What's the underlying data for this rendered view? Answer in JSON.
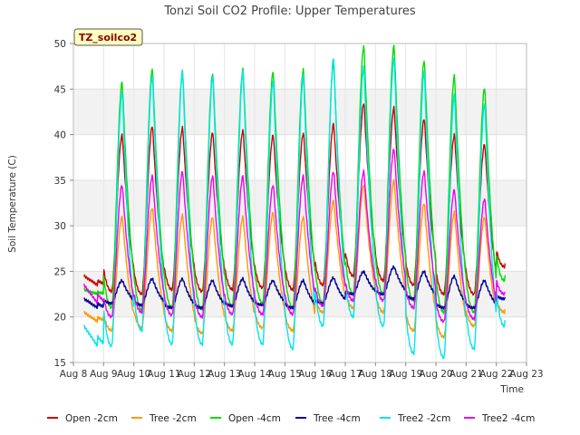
{
  "chart_data": {
    "type": "line",
    "title": "Tonzi Soil CO2 Profile: Upper Temperatures",
    "xlabel": "Time",
    "ylabel": "Soil Temperature (C)",
    "ylim": [
      15,
      50
    ],
    "xlim": [
      8,
      23
    ],
    "yticks": [
      15,
      20,
      25,
      30,
      35,
      40,
      45,
      50
    ],
    "xticks": [
      {
        "v": 8,
        "label": "Aug 8"
      },
      {
        "v": 9,
        "label": "Aug 9"
      },
      {
        "v": 10,
        "label": "Aug 10"
      },
      {
        "v": 11,
        "label": "Aug 11"
      },
      {
        "v": 12,
        "label": "Aug 12"
      },
      {
        "v": 13,
        "label": "Aug 13"
      },
      {
        "v": 14,
        "label": "Aug 14"
      },
      {
        "v": 15,
        "label": "Aug 15"
      },
      {
        "v": 16,
        "label": "Aug 16"
      },
      {
        "v": 17,
        "label": "Aug 17"
      },
      {
        "v": 18,
        "label": "Aug 18"
      },
      {
        "v": 19,
        "label": "Aug 19"
      },
      {
        "v": 20,
        "label": "Aug 20"
      },
      {
        "v": 21,
        "label": "Aug 21"
      },
      {
        "v": 22,
        "label": "Aug 22"
      },
      {
        "v": 23,
        "label": "Aug 23"
      }
    ],
    "grid": true,
    "legend_position": "bottom",
    "tag_label": "TZ_soilco2",
    "days": [
      8,
      9,
      10,
      11,
      12,
      13,
      14,
      15,
      16,
      17,
      18,
      19,
      20,
      21,
      22
    ],
    "series": [
      {
        "name": "Open -2cm",
        "color": "#cc0000",
        "max": [
          24.5,
          40.0,
          41.0,
          40.8,
          40.3,
          40.5,
          40.0,
          40.2,
          41.2,
          43.5,
          43.0,
          41.8,
          40.0,
          39.0,
          38.8
        ],
        "min": [
          23.5,
          22.8,
          22.5,
          23.0,
          22.8,
          23.0,
          23.2,
          23.0,
          23.5,
          24.5,
          24.0,
          23.5,
          22.5,
          22.5,
          25.5
        ]
      },
      {
        "name": "Tree -2cm",
        "color": "#ff9900",
        "max": [
          20.5,
          31.0,
          32.0,
          31.2,
          31.0,
          31.0,
          31.5,
          31.0,
          32.8,
          34.5,
          35.0,
          32.5,
          31.5,
          31.0,
          31.0
        ],
        "min": [
          19.5,
          18.5,
          18.8,
          18.5,
          18.2,
          18.5,
          18.8,
          18.5,
          20.5,
          21.0,
          20.5,
          18.5,
          17.8,
          19.0,
          20.5
        ]
      },
      {
        "name": "Open -4cm",
        "color": "#00dd00",
        "max": [
          23.0,
          45.8,
          47.3,
          47.0,
          46.8,
          47.2,
          47.0,
          47.2,
          48.0,
          49.8,
          49.8,
          48.2,
          46.5,
          45.2,
          44.5
        ],
        "min": [
          22.5,
          21.0,
          20.8,
          21.0,
          20.8,
          21.2,
          21.5,
          21.0,
          21.5,
          22.5,
          22.5,
          21.8,
          20.5,
          20.5,
          24.0
        ]
      },
      {
        "name": "Tree -4cm",
        "color": "#000099",
        "max": [
          22.0,
          24.0,
          24.2,
          24.2,
          24.0,
          24.2,
          24.0,
          24.0,
          24.3,
          25.0,
          25.5,
          25.0,
          24.5,
          24.0,
          24.0
        ],
        "min": [
          21.0,
          21.5,
          21.3,
          21.0,
          21.0,
          21.2,
          21.3,
          21.0,
          21.5,
          22.5,
          22.5,
          22.0,
          21.0,
          21.0,
          22.0
        ]
      },
      {
        "name": "Tree2 -2cm",
        "color": "#00e5ee",
        "max": [
          19.0,
          44.8,
          46.5,
          47.0,
          46.5,
          47.0,
          46.0,
          46.5,
          48.5,
          47.5,
          48.5,
          47.0,
          44.5,
          43.5,
          45.5
        ],
        "min": [
          16.8,
          16.8,
          18.5,
          17.0,
          17.0,
          17.0,
          17.0,
          16.5,
          19.0,
          20.0,
          19.0,
          16.0,
          15.5,
          16.5,
          19.0
        ]
      },
      {
        "name": "Tree2 -4cm",
        "color": "#ee00ee",
        "max": [
          23.5,
          34.5,
          35.5,
          36.0,
          35.5,
          35.5,
          34.5,
          35.5,
          36.0,
          36.0,
          38.5,
          36.0,
          34.0,
          33.0,
          33.0
        ],
        "min": [
          21.5,
          20.0,
          20.5,
          20.2,
          20.0,
          20.3,
          20.3,
          20.3,
          21.2,
          21.8,
          21.8,
          21.0,
          19.5,
          19.8,
          22.5
        ]
      }
    ]
  }
}
